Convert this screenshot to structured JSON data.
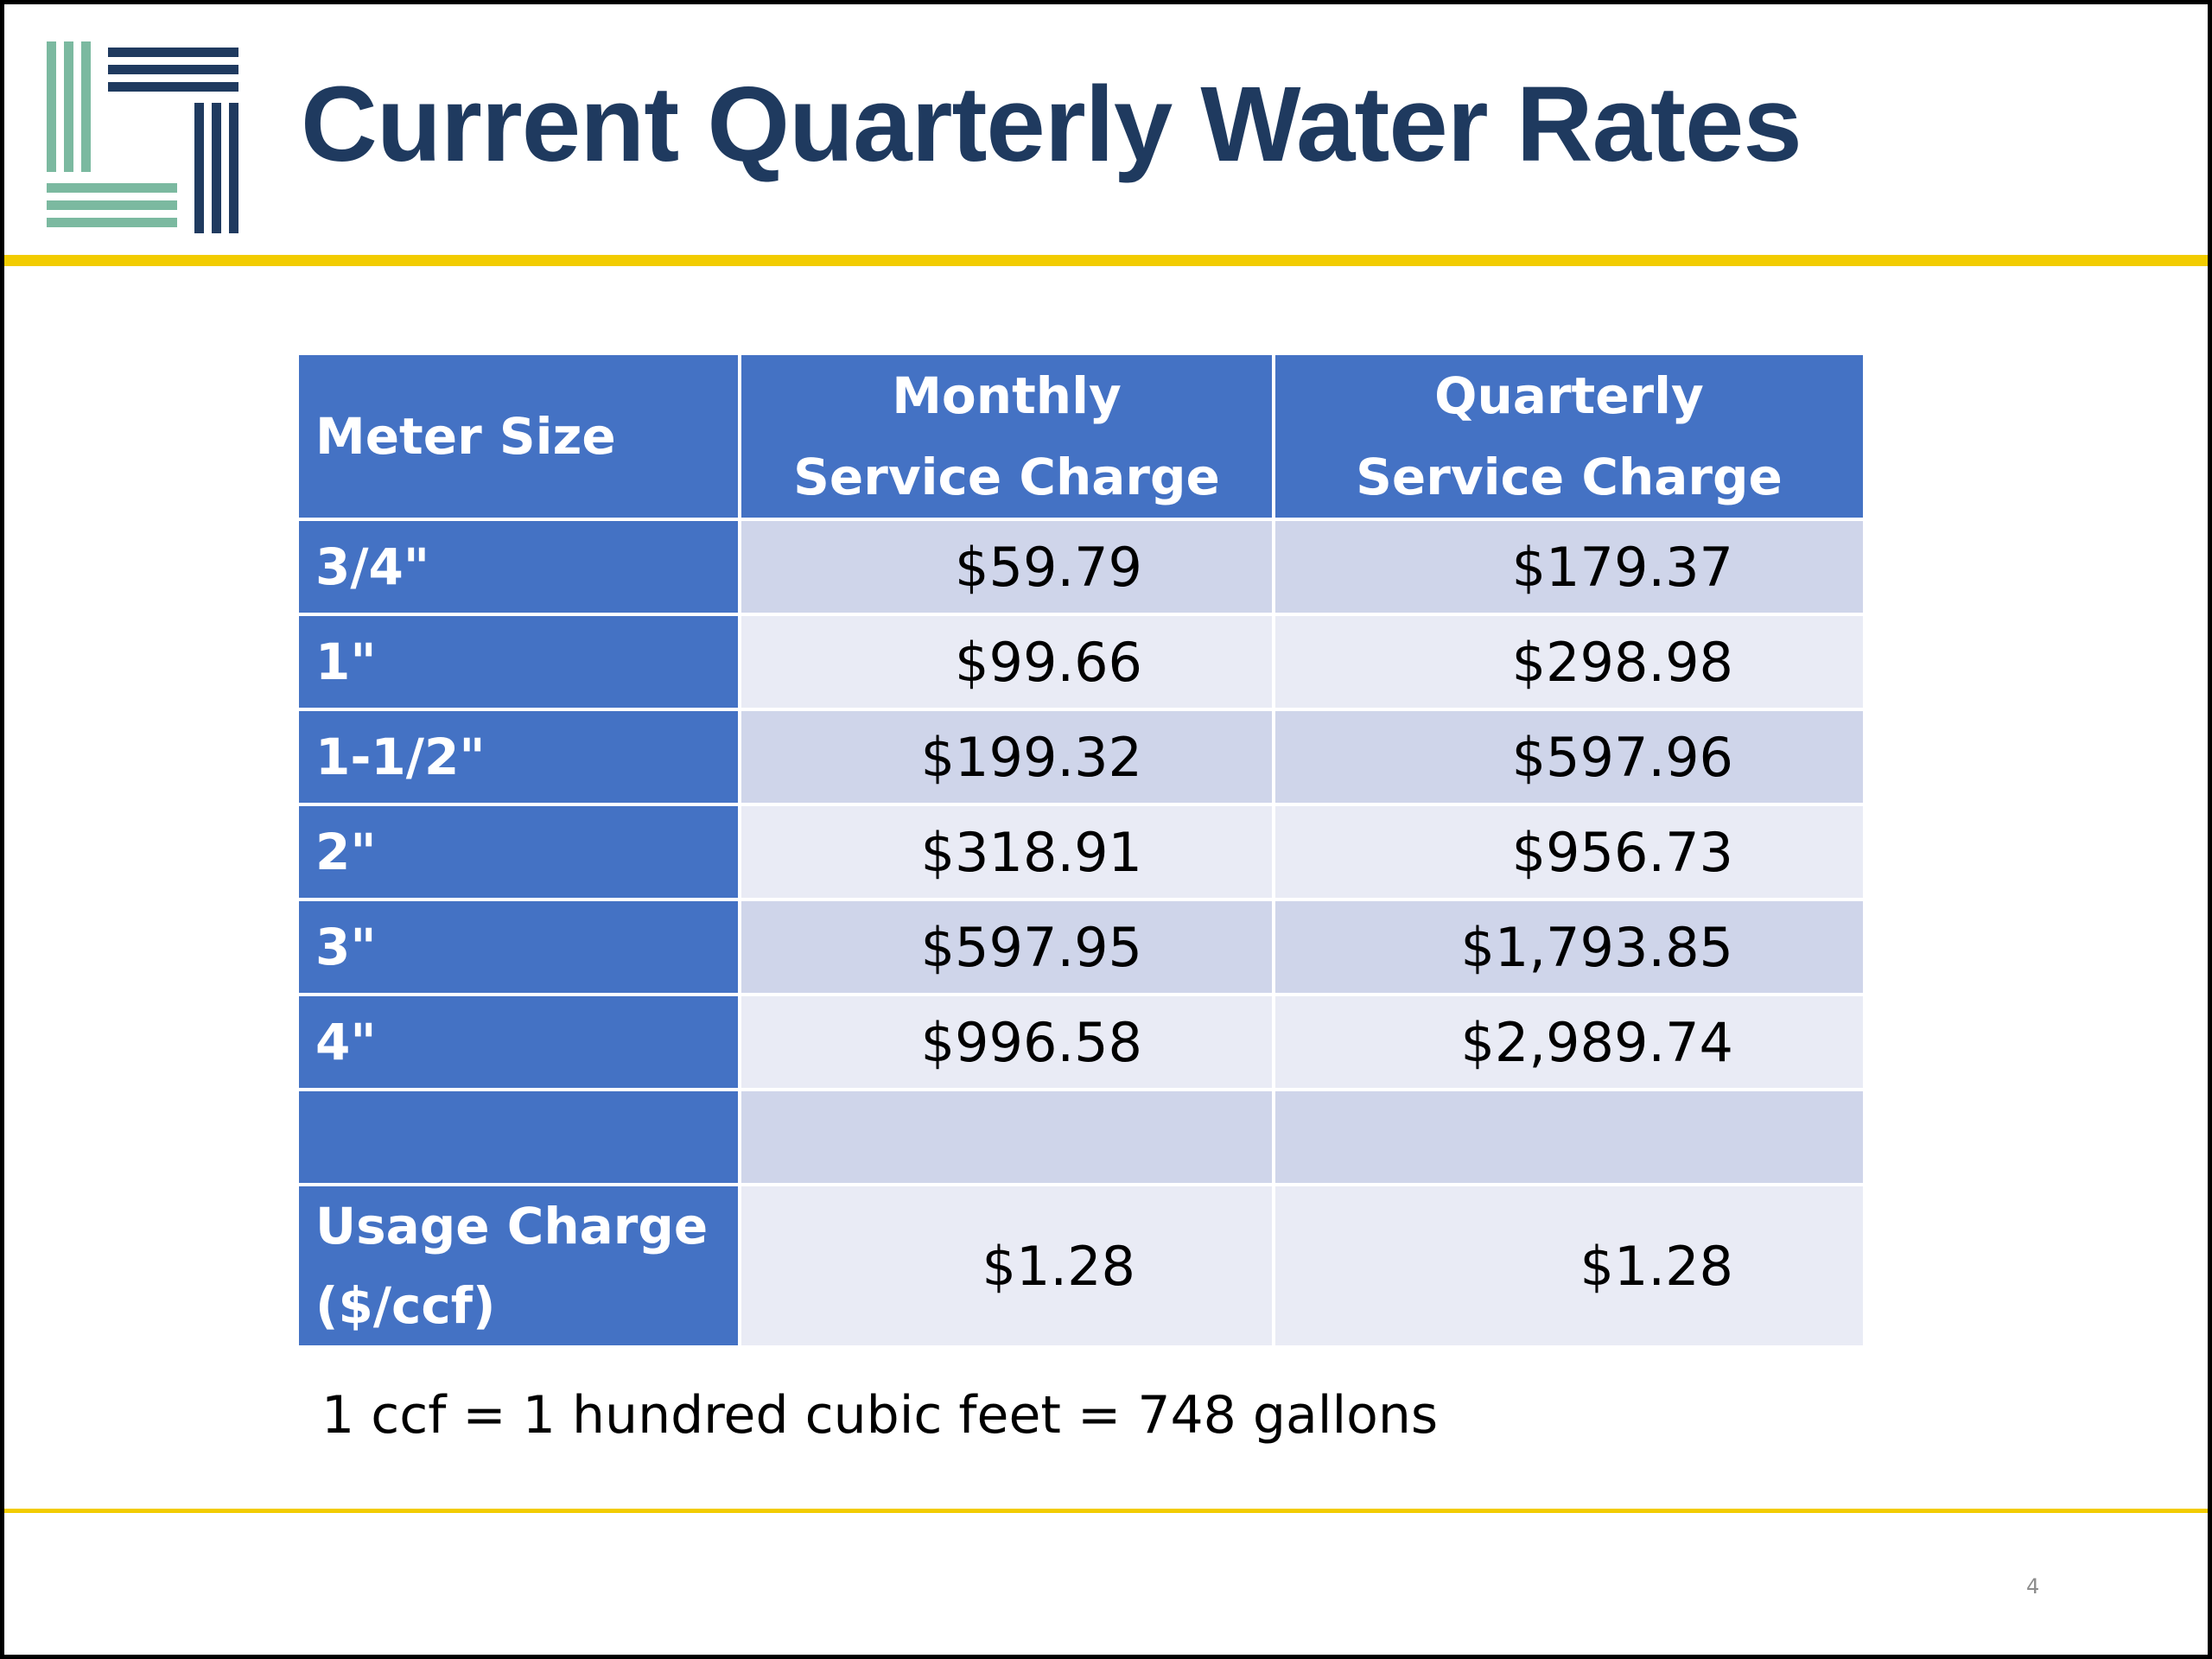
{
  "slide": {
    "title": "Current Quarterly Water Rates",
    "page_number": "4",
    "note": "1 ccf = 1 hundred cubic feet = 748 gallons"
  },
  "colors": {
    "title": "#1f3a5f",
    "accent_rule": "#f2cc00",
    "header_fill": "#4472c4",
    "row_fill_dark": "#cfd5ea",
    "row_fill_light": "#e9ebf5",
    "logo_green": "#7bb9a0",
    "logo_navy": "#1f3a5f"
  },
  "table": {
    "headers": {
      "meter_size": "Meter Size",
      "monthly_line1": "Monthly",
      "monthly_line2": "Service Charge",
      "quarterly_line1": "Quarterly",
      "quarterly_line2": "Service Charge"
    },
    "rows": [
      {
        "size": "3/4\"",
        "monthly": "$59.79",
        "quarterly": "$179.37"
      },
      {
        "size": "1\"",
        "monthly": "$99.66",
        "quarterly": "$298.98"
      },
      {
        "size": "1-1/2\"",
        "monthly": "$199.32",
        "quarterly": "$597.96"
      },
      {
        "size": "2\"",
        "monthly": "$318.91",
        "quarterly": "$956.73"
      },
      {
        "size": "3\"",
        "monthly": "$597.95",
        "quarterly": "$1,793.85"
      },
      {
        "size": "4\"",
        "monthly": "$996.58",
        "quarterly": "$2,989.74"
      },
      {
        "size": "",
        "monthly": "",
        "quarterly": ""
      }
    ],
    "usage": {
      "label_line1": "Usage Charge",
      "label_line2": "($/ccf)",
      "monthly": "$1.28",
      "quarterly": "$1.28"
    }
  }
}
